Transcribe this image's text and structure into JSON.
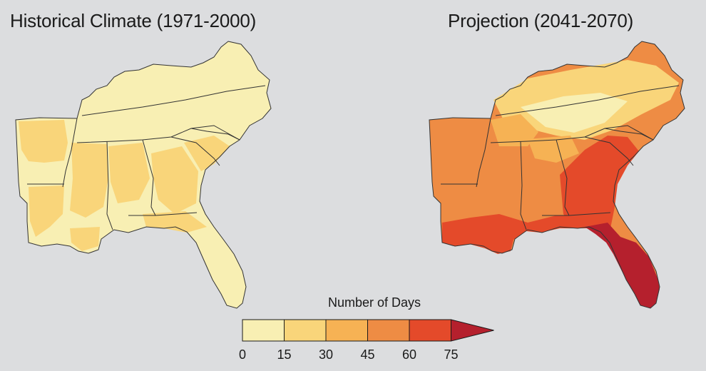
{
  "maps": [
    {
      "title": "Historical Climate (1971-2000)"
    },
    {
      "title": "Projection (2041-2070)"
    }
  ],
  "legend": {
    "title": "Number of Days",
    "ticks": [
      "0",
      "15",
      "30",
      "45",
      "60",
      "75"
    ],
    "bins": [
      {
        "range": "0-15",
        "color": "#f8efb3"
      },
      {
        "range": "15-30",
        "color": "#f9d57a"
      },
      {
        "range": "30-45",
        "color": "#f6b254"
      },
      {
        "range": "45-60",
        "color": "#ee8c44"
      },
      {
        "range": "60-75",
        "color": "#e44a2a"
      },
      {
        "range": ">75",
        "color": "#b5202d"
      }
    ]
  },
  "colors": {
    "background": "#dcdddf",
    "border": "#333333"
  }
}
